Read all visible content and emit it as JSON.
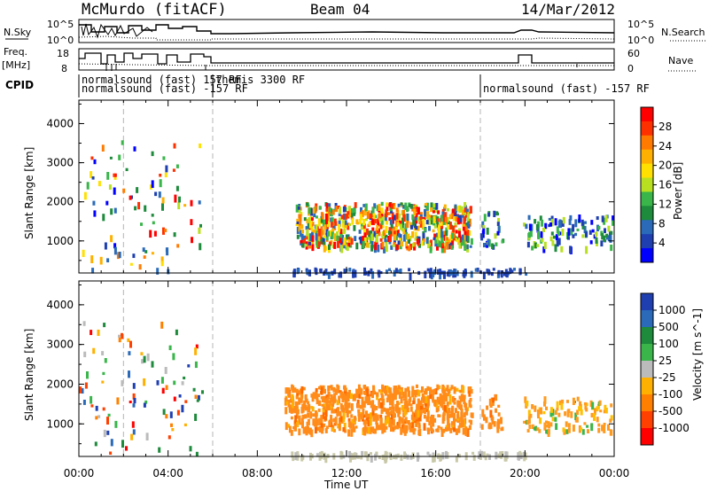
{
  "header": {
    "station": "McMurdo (fitACF)",
    "beam": "Beam 04",
    "date": "14/Mar/2012"
  },
  "top_panels": {
    "nsky_label": "N.Sky",
    "nsky_ticks": [
      "10^5",
      "10^0"
    ],
    "nsearch_label": "N.Search",
    "nsearch_ticks": [
      "10^5",
      "10^0"
    ],
    "freq_label": "Freq.",
    "freq_unit": "[MHz]",
    "freq_ticks": [
      "18",
      "8"
    ],
    "nave_label": "Nave",
    "nave_ticks": [
      "60",
      "0"
    ],
    "cpid_label": "CPID",
    "cpid_entries": [
      {
        "text": "normalsound (fast) 157 RF",
        "time": 0.0,
        "row": 0
      },
      {
        "text": "themis 3300 RF",
        "time": 6.0,
        "row": 0
      },
      {
        "text": "normalsound (fast) -157 RF",
        "time": 0.0,
        "row": 1
      },
      {
        "text": "normalsound (fast) -157 RF",
        "time": 18.0,
        "row": 1
      }
    ]
  },
  "chart_data": [
    {
      "type": "heatmap",
      "name": "power",
      "xlabel": "Time UT",
      "ylabel": "Slant Range [km]",
      "xlim": [
        0,
        24
      ],
      "ylim": [
        180,
        4600
      ],
      "x_ticks": [
        "00:00",
        "04:00",
        "08:00",
        "12:00",
        "16:00",
        "20:00",
        "00:00"
      ],
      "y_ticks": [
        1000,
        2000,
        3000,
        4000
      ],
      "colorbar": {
        "label": "Power [dB]",
        "ticks": [
          "28",
          "24",
          "20",
          "16",
          "12",
          "8",
          "4"
        ],
        "colors": [
          "#ff0000",
          "#ff3000",
          "#ff7a00",
          "#ffb000",
          "#ffe000",
          "#b8e020",
          "#39b54a",
          "#1e8a3c",
          "#2a6ab8",
          "#1f3fb0",
          "#0000ff"
        ]
      },
      "dashed_times": [
        2,
        6,
        18
      ],
      "echo_regions": [
        {
          "t": [
            0.0,
            5.5
          ],
          "r": [
            250,
            3600
          ],
          "density": "sparse",
          "dominant": "mixed"
        },
        {
          "t": [
            9.7,
            17.6
          ],
          "r": [
            850,
            2000
          ],
          "density": "dense",
          "dominant": "green-orange-red"
        },
        {
          "t": [
            18.0,
            19.0
          ],
          "r": [
            900,
            1800
          ],
          "density": "medium",
          "dominant": "blue-green"
        },
        {
          "t": [
            19.9,
            23.9
          ],
          "r": [
            850,
            1700
          ],
          "density": "medium",
          "dominant": "blue-green"
        },
        {
          "t": [
            9.5,
            20.0
          ],
          "r": [
            190,
            320
          ],
          "density": "dense",
          "dominant": "blue"
        }
      ]
    },
    {
      "type": "heatmap",
      "name": "velocity",
      "xlabel": "Time UT",
      "ylabel": "Slant Range [km]",
      "xlim": [
        0,
        24
      ],
      "ylim": [
        180,
        4600
      ],
      "x_ticks": [
        "00:00",
        "04:00",
        "08:00",
        "12:00",
        "16:00",
        "20:00",
        "00:00"
      ],
      "y_ticks": [
        1000,
        2000,
        3000,
        4000
      ],
      "colorbar": {
        "label": "Velocity [m s^-1]",
        "ticks": [
          "1000",
          "500",
          "100",
          "25",
          "-25",
          "-100",
          "-500",
          "-1000"
        ],
        "colors": [
          "#1f3fb0",
          "#2a6ab8",
          "#1e8a3c",
          "#39b54a",
          "#bbbbbb",
          "#ffb000",
          "#ff8000",
          "#ff4000",
          "#ff0000"
        ]
      },
      "dashed_times": [
        2,
        6,
        18
      ],
      "echo_regions": [
        {
          "t": [
            0.0,
            5.5
          ],
          "r": [
            250,
            3600
          ],
          "density": "sparse",
          "dominant": "mixed"
        },
        {
          "t": [
            9.2,
            17.6
          ],
          "r": [
            850,
            2000
          ],
          "density": "dense",
          "dominant": "orange"
        },
        {
          "t": [
            18.0,
            19.0
          ],
          "r": [
            900,
            1800
          ],
          "density": "medium",
          "dominant": "orange"
        },
        {
          "t": [
            19.9,
            23.9
          ],
          "r": [
            850,
            1700
          ],
          "density": "medium",
          "dominant": "orange-green"
        },
        {
          "t": [
            9.5,
            20.0
          ],
          "r": [
            190,
            320
          ],
          "density": "dense",
          "dominant": "grey"
        }
      ]
    }
  ]
}
